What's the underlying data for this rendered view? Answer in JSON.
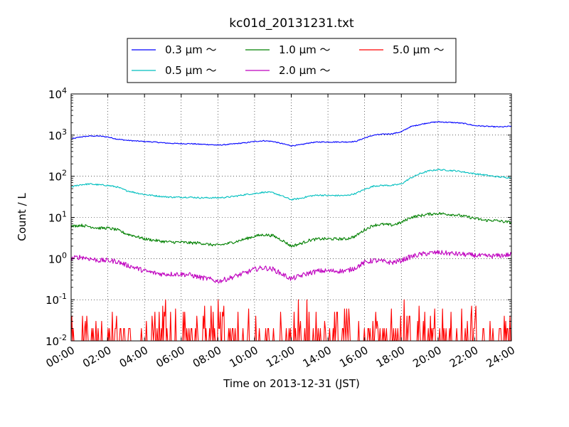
{
  "chart_data": {
    "type": "line",
    "title": "kc01d_20131231.txt",
    "xlabel": "Time on 2013-12-31 (JST)",
    "ylabel": "Count / L",
    "xlim": [
      0,
      24
    ],
    "ylim": [
      0.01,
      10000
    ],
    "yscale": "log",
    "grid": true,
    "legend_placement": "top-center",
    "x_ticks": [
      {
        "value": 0,
        "label": "00:00"
      },
      {
        "value": 2,
        "label": "02:00"
      },
      {
        "value": 4,
        "label": "04:00"
      },
      {
        "value": 6,
        "label": "06:00"
      },
      {
        "value": 8,
        "label": "08:00"
      },
      {
        "value": 10,
        "label": "10:00"
      },
      {
        "value": 12,
        "label": "12:00"
      },
      {
        "value": 14,
        "label": "14:00"
      },
      {
        "value": 16,
        "label": "16:00"
      },
      {
        "value": 18,
        "label": "18:00"
      },
      {
        "value": 20,
        "label": "20:00"
      },
      {
        "value": 22,
        "label": "22:00"
      },
      {
        "value": 24,
        "label": "24:00"
      }
    ],
    "y_ticks": [
      {
        "value": 0.01,
        "base": "10",
        "exp": "-2"
      },
      {
        "value": 0.1,
        "base": "10",
        "exp": "-1"
      },
      {
        "value": 1,
        "base": "10",
        "exp": "0"
      },
      {
        "value": 10,
        "base": "10",
        "exp": "1"
      },
      {
        "value": 100,
        "base": "10",
        "exp": "2"
      },
      {
        "value": 1000,
        "base": "10",
        "exp": "3"
      },
      {
        "value": 10000,
        "base": "10",
        "exp": "4"
      }
    ],
    "series": [
      {
        "name": "0.3 μm ～",
        "color": "#0000ff",
        "x": [
          0,
          0.5,
          1,
          1.5,
          2,
          2.5,
          3,
          3.5,
          4,
          4.5,
          5,
          5.5,
          6,
          6.5,
          7,
          7.5,
          8,
          8.5,
          9,
          9.5,
          10,
          10.5,
          11,
          11.5,
          12,
          12.5,
          13,
          13.5,
          14,
          14.5,
          15,
          15.5,
          16,
          16.5,
          17,
          17.5,
          18,
          18.5,
          19,
          19.5,
          20,
          20.5,
          21,
          21.5,
          22,
          22.5,
          23,
          23.5,
          24
        ],
        "values": [
          800,
          900,
          950,
          950,
          900,
          800,
          750,
          720,
          700,
          680,
          650,
          630,
          620,
          620,
          600,
          590,
          570,
          590,
          620,
          650,
          700,
          730,
          700,
          620,
          550,
          580,
          650,
          680,
          680,
          680,
          680,
          700,
          850,
          1000,
          1050,
          1080,
          1200,
          1600,
          1800,
          2000,
          2100,
          2050,
          2000,
          1900,
          1700,
          1650,
          1600,
          1580,
          1650
        ]
      },
      {
        "name": "0.5 μm ～",
        "color": "#00bfbf",
        "x": [
          0,
          0.5,
          1,
          1.5,
          2,
          2.5,
          3,
          3.5,
          4,
          4.5,
          5,
          5.5,
          6,
          6.5,
          7,
          7.5,
          8,
          8.5,
          9,
          9.5,
          10,
          10.5,
          11,
          11.5,
          12,
          12.5,
          13,
          13.5,
          14,
          14.5,
          15,
          15.5,
          16,
          16.5,
          17,
          17.5,
          18,
          18.5,
          19,
          19.5,
          20,
          20.5,
          21,
          21.5,
          22,
          22.5,
          23,
          23.5,
          24
        ],
        "values": [
          55,
          62,
          65,
          62,
          60,
          55,
          45,
          40,
          36,
          34,
          32,
          31,
          31,
          31,
          30,
          30,
          30,
          31,
          33,
          36,
          38,
          41,
          40,
          33,
          27,
          29,
          33,
          35,
          34,
          34,
          34,
          38,
          48,
          58,
          60,
          60,
          65,
          90,
          115,
          135,
          145,
          140,
          135,
          125,
          115,
          108,
          100,
          95,
          92
        ]
      },
      {
        "name": "1.0 μm ～",
        "color": "#008000",
        "x": [
          0,
          0.5,
          1,
          1.5,
          2,
          2.5,
          3,
          3.5,
          4,
          4.5,
          5,
          5.5,
          6,
          6.5,
          7,
          7.5,
          8,
          8.5,
          9,
          9.5,
          10,
          10.5,
          11,
          11.5,
          12,
          12.5,
          13,
          13.5,
          14,
          14.5,
          15,
          15.5,
          16,
          16.5,
          17,
          17.5,
          18,
          18.5,
          19,
          19.5,
          20,
          20.5,
          21,
          21.5,
          22,
          22.5,
          23,
          23.5,
          24
        ],
        "values": [
          6,
          6.5,
          6,
          5.5,
          5.5,
          5,
          4,
          3.5,
          3,
          2.8,
          2.6,
          2.5,
          2.5,
          2.4,
          2.4,
          2.2,
          2.1,
          2.3,
          2.6,
          3,
          3.5,
          3.8,
          3.6,
          2.8,
          2,
          2.3,
          2.8,
          3,
          3,
          3,
          3,
          3.5,
          5,
          6.5,
          6.8,
          6.5,
          7.5,
          10,
          11,
          12,
          12.5,
          12,
          11.5,
          10.5,
          9.5,
          8.5,
          8.5,
          8,
          7.5
        ]
      },
      {
        "name": "2.0 μm ～",
        "color": "#bf00bf",
        "x": [
          0,
          0.5,
          1,
          1.5,
          2,
          2.5,
          3,
          3.5,
          4,
          4.5,
          5,
          5.5,
          6,
          6.5,
          7,
          7.5,
          8,
          8.5,
          9,
          9.5,
          10,
          10.5,
          11,
          11.5,
          12,
          12.5,
          13,
          13.5,
          14,
          14.5,
          15,
          15.5,
          16,
          16.5,
          17,
          17.5,
          18,
          18.5,
          19,
          19.5,
          20,
          20.5,
          21,
          21.5,
          22,
          22.5,
          23,
          23.5,
          24
        ],
        "values": [
          1,
          1.1,
          1,
          0.9,
          0.9,
          0.85,
          0.7,
          0.6,
          0.5,
          0.45,
          0.42,
          0.42,
          0.42,
          0.4,
          0.35,
          0.32,
          0.28,
          0.32,
          0.38,
          0.45,
          0.55,
          0.6,
          0.55,
          0.42,
          0.32,
          0.38,
          0.45,
          0.5,
          0.5,
          0.5,
          0.5,
          0.6,
          0.8,
          0.9,
          0.85,
          0.8,
          0.9,
          1.1,
          1.25,
          1.35,
          1.4,
          1.35,
          1.3,
          1.25,
          1.2,
          1.15,
          1.15,
          1.2,
          1.25
        ]
      },
      {
        "name": "5.0 μm ～",
        "color": "#ff0000",
        "values": [
          0.02,
          0.05,
          0.02,
          0.04,
          0.02,
          0.06,
          0.02,
          0.03,
          0.02,
          0.05,
          0.02,
          0.07,
          0.02,
          0.04,
          0.02,
          0.03,
          0.02
        ]
      }
    ]
  }
}
